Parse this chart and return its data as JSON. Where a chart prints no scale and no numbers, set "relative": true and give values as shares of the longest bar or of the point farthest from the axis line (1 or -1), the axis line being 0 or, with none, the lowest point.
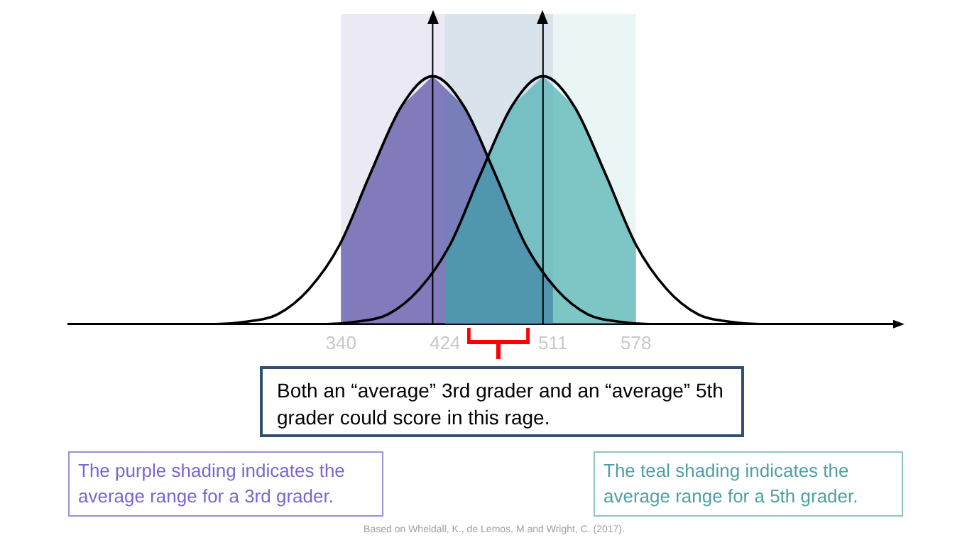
{
  "chart_data": {
    "type": "line",
    "relative": true,
    "tick_labels": "x",
    "grid": false,
    "legend": false,
    "marker": "none",
    "line_style": "solid",
    "xlim": [
      120,
      790
    ],
    "xticks": [
      340,
      424,
      511,
      578
    ],
    "series": [
      {
        "color": "#000000",
        "x": [
          164,
          189,
          214,
          239,
          264,
          289,
          314,
          339,
          364,
          389,
          414,
          439,
          464,
          489,
          514,
          539,
          564,
          589,
          614,
          639,
          664
        ],
        "values": [
          0,
          0,
          0,
          0,
          0.01,
          0.04,
          0.14,
          0.32,
          0.61,
          0.88,
          1,
          0.88,
          0.61,
          0.32,
          0.14,
          0.04,
          0.01,
          0,
          0,
          0,
          0
        ]
      },
      {
        "color": "#000000",
        "x": [
          253,
          278,
          303,
          328,
          353,
          378,
          403,
          428,
          453,
          478,
          503,
          528,
          553,
          578,
          603,
          628,
          653,
          678,
          703,
          728,
          753
        ],
        "values": [
          0,
          0,
          0,
          0,
          0.01,
          0.04,
          0.14,
          0.32,
          0.61,
          0.88,
          1,
          0.88,
          0.61,
          0.32,
          0.14,
          0.04,
          0.01,
          0,
          0,
          0,
          0
        ]
      }
    ],
    "bands": [
      {
        "axis": "x",
        "from": 340,
        "to": 511,
        "color": "#3b2f95"
      },
      {
        "axis": "x",
        "from": 424,
        "to": 578,
        "color": "#35a6a6"
      }
    ],
    "ref_lines": [
      {
        "axis": "x",
        "value": 414,
        "color": "#000000"
      },
      {
        "axis": "x",
        "value": 503,
        "color": "#000000"
      }
    ],
    "annotations": [
      "Both an “average” 3rd grader and an “average” 5th grader could score in this rage.",
      "The purple shading indicates the average range for a 3rd grader.",
      "The teal shading indicates the average range for a 5th grader.",
      "Based on Wheldall, K., de Lemos, M and Wright, C. (2017)."
    ]
  }
}
